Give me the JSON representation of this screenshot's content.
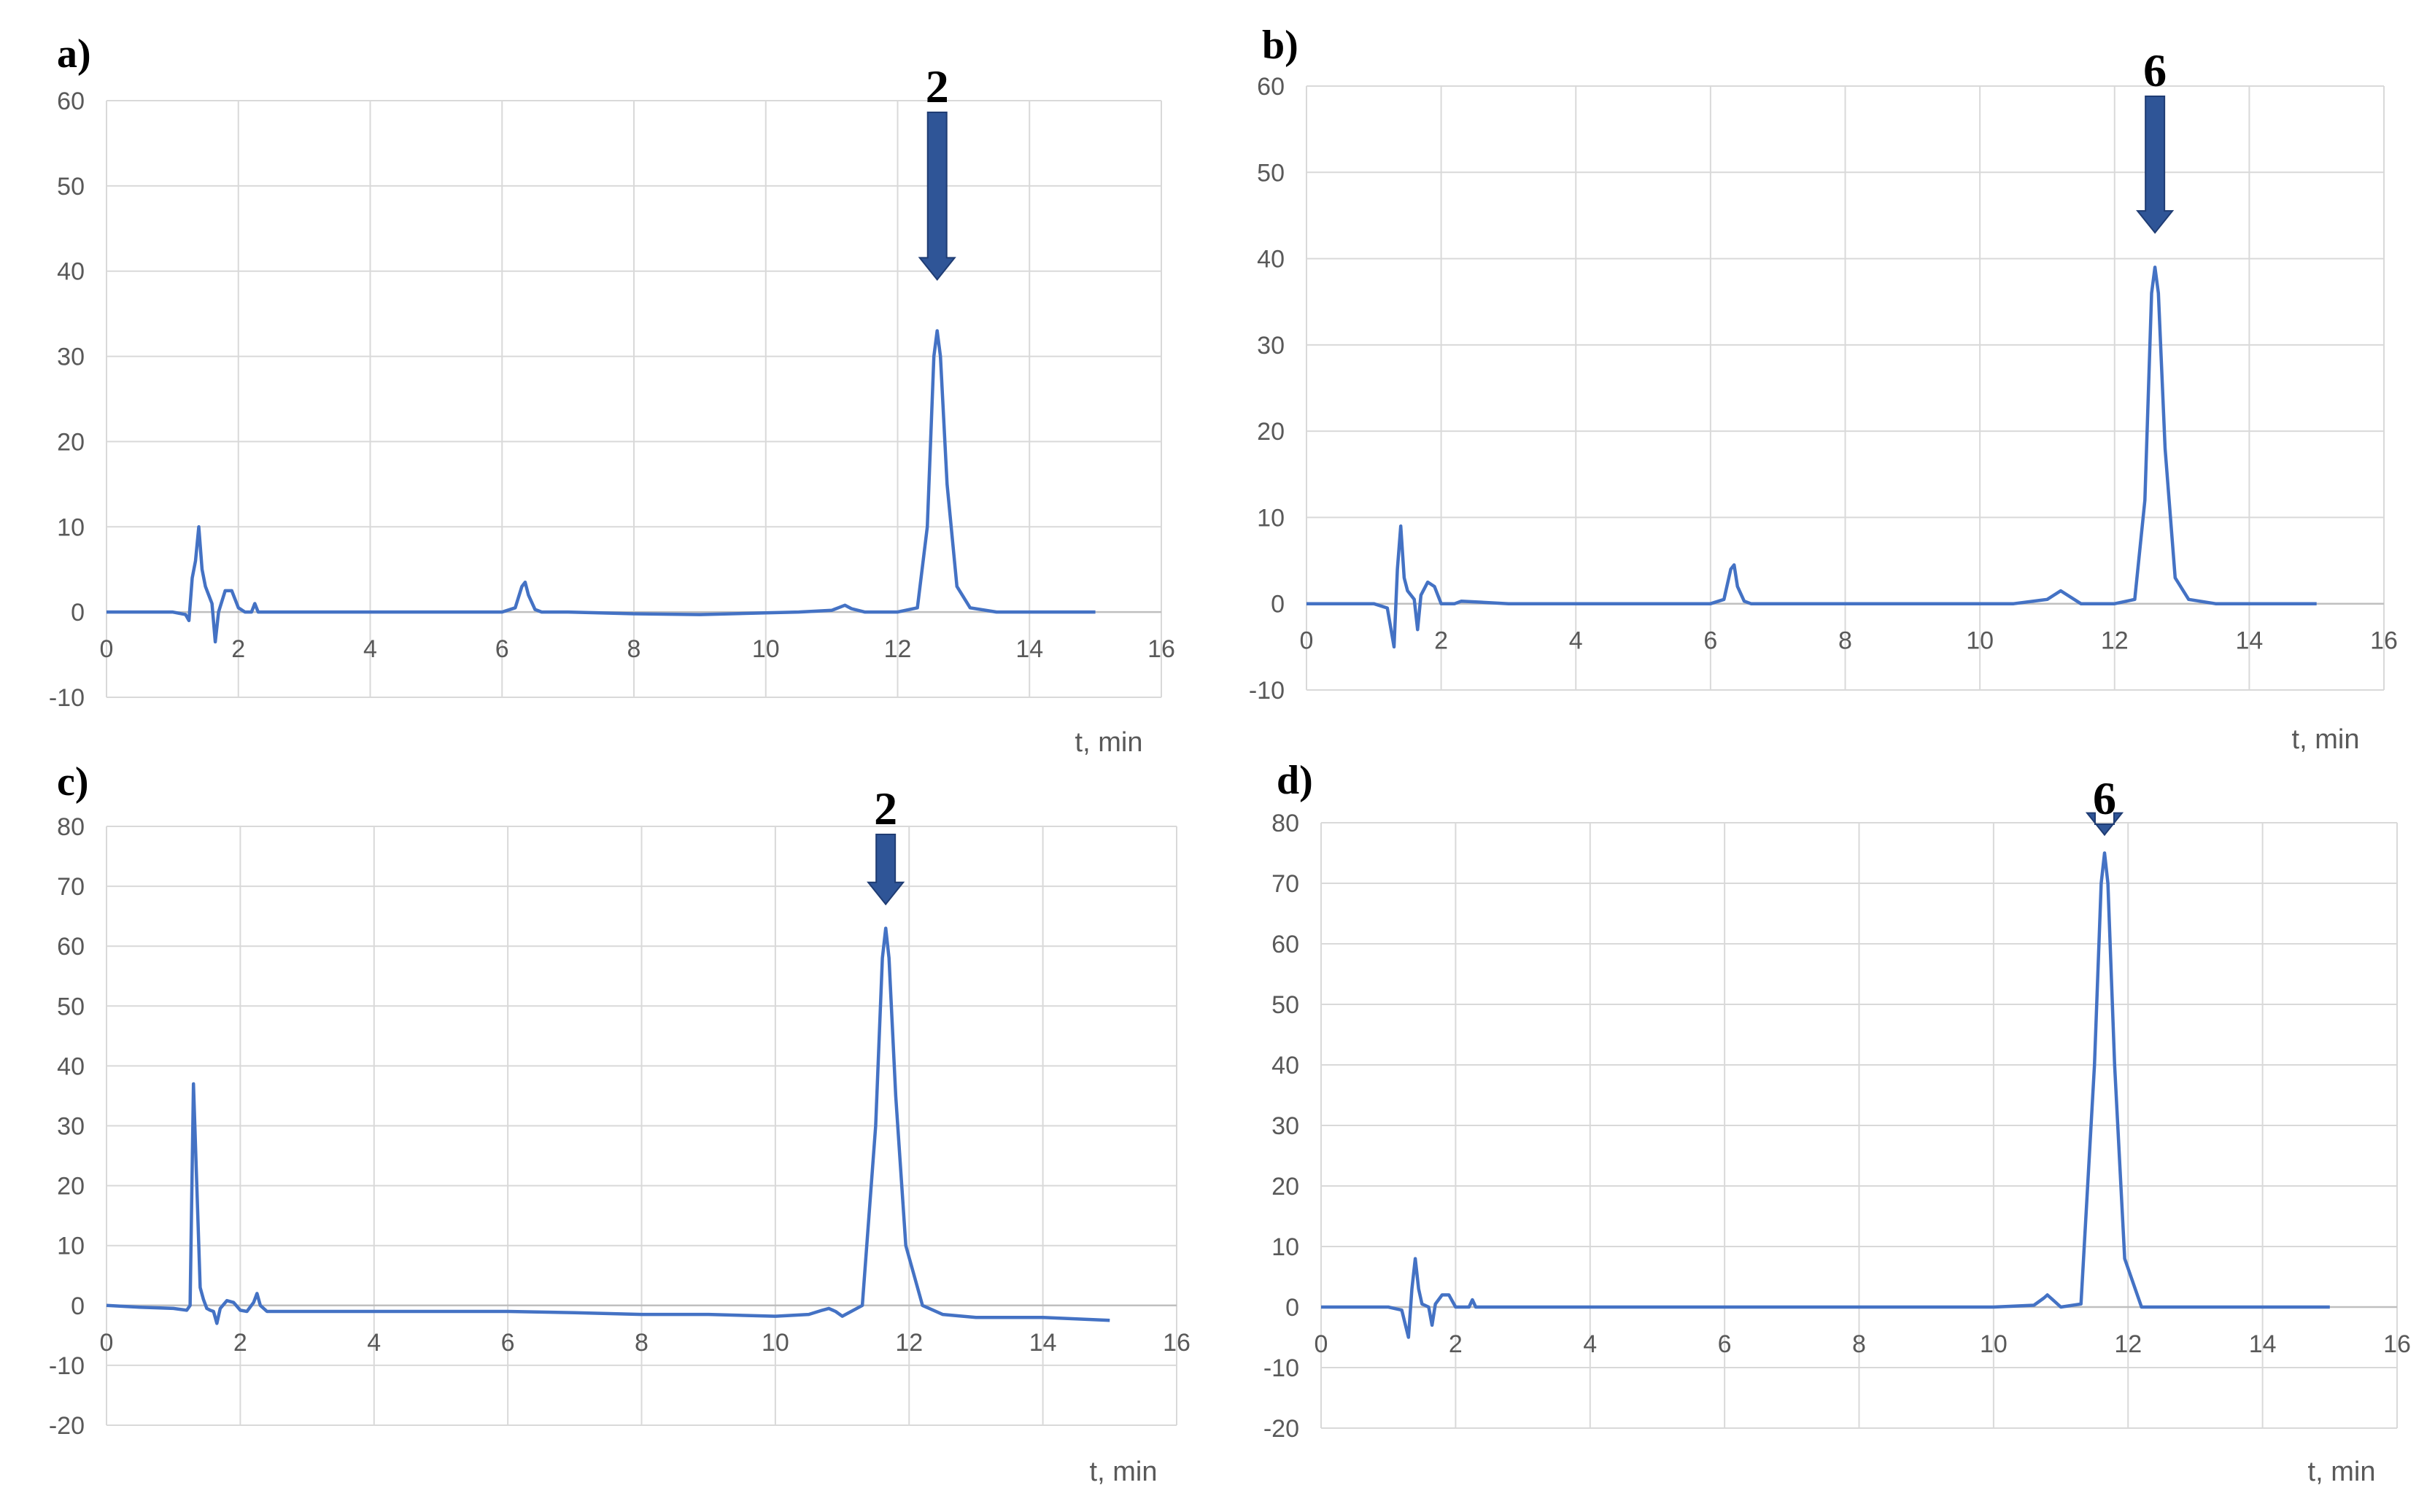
{
  "chart_data": [
    {
      "type": "line",
      "panel_label": "a)",
      "xlabel": "t, min",
      "ylabel": "",
      "xlim": [
        0,
        16
      ],
      "ylim": [
        -10,
        60
      ],
      "x_ticks": [
        0,
        2,
        4,
        6,
        8,
        10,
        12,
        14,
        16
      ],
      "y_ticks": [
        -10,
        0,
        10,
        20,
        30,
        40,
        50,
        60
      ],
      "grid": true,
      "line_color": "#4472c4",
      "arrow_color": "#2f5597",
      "series": [
        {
          "x": [
            0,
            0.5,
            1.0,
            1.2,
            1.25,
            1.3,
            1.35,
            1.4,
            1.45,
            1.5,
            1.55,
            1.6,
            1.65,
            1.7,
            1.8,
            1.9,
            2.0,
            2.1,
            2.2,
            2.25,
            2.3,
            2.4,
            3,
            4,
            5,
            6,
            6.2,
            6.3,
            6.35,
            6.4,
            6.5,
            6.6,
            7,
            8,
            9,
            10,
            10.5,
            11,
            11.1,
            11.2,
            11.3,
            11.5,
            12,
            12.3,
            12.45,
            12.55,
            12.6,
            12.65,
            12.75,
            12.9,
            13.1,
            13.5,
            14,
            15
          ],
          "y": [
            0,
            0,
            0,
            -0.3,
            -1,
            4,
            6,
            10,
            5,
            3,
            2,
            1,
            -3.5,
            0,
            2.5,
            2.5,
            0.5,
            0,
            0,
            1,
            0,
            0,
            0,
            0,
            0,
            0,
            0.5,
            3,
            3.5,
            2,
            0.3,
            0,
            0,
            -0.2,
            -0.3,
            -0.1,
            0,
            0.2,
            0.5,
            0.8,
            0.4,
            0,
            0,
            0.5,
            10,
            30,
            33,
            30,
            15,
            3,
            0.5,
            0,
            0,
            0
          ]
        }
      ],
      "annotation": {
        "text": "2",
        "x": 12.6,
        "arrow_tip_y": 39
      }
    },
    {
      "type": "line",
      "panel_label": "b)",
      "xlabel": "t, min",
      "ylabel": "",
      "xlim": [
        0,
        16
      ],
      "ylim": [
        -10,
        60
      ],
      "x_ticks": [
        0,
        2,
        4,
        6,
        8,
        10,
        12,
        14,
        16
      ],
      "y_ticks": [
        -10,
        0,
        10,
        20,
        30,
        40,
        50,
        60
      ],
      "grid": true,
      "line_color": "#4472c4",
      "arrow_color": "#2f5597",
      "series": [
        {
          "x": [
            0,
            0.5,
            1.0,
            1.2,
            1.3,
            1.35,
            1.4,
            1.45,
            1.5,
            1.6,
            1.65,
            1.7,
            1.8,
            1.9,
            2.0,
            2.2,
            2.3,
            3,
            4,
            5,
            6,
            6.2,
            6.3,
            6.35,
            6.4,
            6.5,
            6.6,
            7,
            8,
            9,
            10,
            10.5,
            11,
            11.1,
            11.2,
            11.3,
            11.5,
            12,
            12.3,
            12.45,
            12.55,
            12.6,
            12.65,
            12.75,
            12.9,
            13.1,
            13.5,
            14,
            15
          ],
          "y": [
            0,
            0,
            0,
            -0.5,
            -5,
            4,
            9,
            3,
            1.5,
            0.5,
            -3,
            1,
            2.5,
            2,
            0,
            0,
            0.3,
            0,
            0,
            0,
            0,
            0.5,
            4,
            4.5,
            2,
            0.3,
            0,
            0,
            0,
            0,
            0,
            0,
            0.5,
            1,
            1.5,
            1,
            0,
            0,
            0.5,
            12,
            36,
            39,
            36,
            18,
            3,
            0.5,
            0,
            0,
            0
          ]
        }
      ],
      "annotation": {
        "text": "6",
        "x": 12.6,
        "arrow_tip_y": 43
      }
    },
    {
      "type": "line",
      "panel_label": "c)",
      "xlabel": "t, min",
      "ylabel": "",
      "xlim": [
        0,
        16
      ],
      "ylim": [
        -20,
        80
      ],
      "x_ticks": [
        0,
        2,
        4,
        6,
        8,
        10,
        12,
        14,
        16
      ],
      "y_ticks": [
        -20,
        -10,
        0,
        10,
        20,
        30,
        40,
        50,
        60,
        70,
        80
      ],
      "grid": true,
      "line_color": "#4472c4",
      "arrow_color": "#2f5597",
      "series": [
        {
          "x": [
            0,
            0.5,
            1.0,
            1.2,
            1.25,
            1.3,
            1.35,
            1.4,
            1.45,
            1.5,
            1.55,
            1.6,
            1.65,
            1.7,
            1.8,
            1.9,
            2.0,
            2.1,
            2.2,
            2.25,
            2.3,
            2.4,
            3,
            4,
            5,
            6,
            7,
            8,
            9,
            10,
            10.5,
            10.7,
            10.8,
            10.9,
            11.0,
            11.3,
            11.5,
            11.6,
            11.65,
            11.7,
            11.8,
            11.95,
            12.2,
            12.5,
            13,
            14,
            15
          ],
          "y": [
            0,
            -0.3,
            -0.5,
            -0.8,
            0,
            37,
            20,
            3,
            1,
            -0.5,
            -0.8,
            -1,
            -3,
            -0.5,
            0.8,
            0.5,
            -0.8,
            -1,
            0.5,
            2,
            0,
            -1,
            -1,
            -1,
            -1,
            -1,
            -1.2,
            -1.5,
            -1.5,
            -1.8,
            -1.5,
            -0.8,
            -0.5,
            -1,
            -1.8,
            0,
            30,
            58,
            63,
            58,
            35,
            10,
            0,
            -1.5,
            -2,
            -2,
            -2.5
          ]
        }
      ],
      "annotation": {
        "text": "2",
        "x": 11.65,
        "arrow_tip_y": 67
      }
    },
    {
      "type": "line",
      "panel_label": "d)",
      "xlabel": "t, min",
      "ylabel": "",
      "xlim": [
        0,
        16
      ],
      "ylim": [
        -20,
        80
      ],
      "x_ticks": [
        0,
        2,
        4,
        6,
        8,
        10,
        12,
        14,
        16
      ],
      "y_ticks": [
        -20,
        -10,
        0,
        10,
        20,
        30,
        40,
        50,
        60,
        70,
        80
      ],
      "grid": true,
      "line_color": "#4472c4",
      "arrow_color": "#2f5597",
      "series": [
        {
          "x": [
            0,
            0.5,
            1.0,
            1.2,
            1.3,
            1.35,
            1.4,
            1.45,
            1.5,
            1.6,
            1.65,
            1.7,
            1.8,
            1.9,
            2.0,
            2.2,
            2.25,
            2.3,
            3,
            4,
            5,
            6,
            7,
            8,
            9,
            10,
            10.6,
            10.75,
            10.8,
            10.85,
            11.0,
            11.3,
            11.5,
            11.6,
            11.65,
            11.7,
            11.8,
            11.95,
            12.2,
            12.5,
            13,
            14,
            15
          ],
          "y": [
            0,
            0,
            0,
            -0.5,
            -5,
            3,
            8,
            3,
            0.5,
            0,
            -3,
            0.5,
            2,
            2,
            0,
            0,
            1.2,
            0,
            0,
            0,
            0,
            0,
            0,
            0,
            0,
            0,
            0.3,
            1.5,
            2,
            1.5,
            0,
            0.5,
            40,
            70,
            75,
            70,
            40,
            8,
            0,
            0,
            0,
            0,
            0
          ]
        }
      ],
      "annotation": {
        "text": "6",
        "x": 11.65,
        "arrow_tip_y": 78
      }
    }
  ]
}
